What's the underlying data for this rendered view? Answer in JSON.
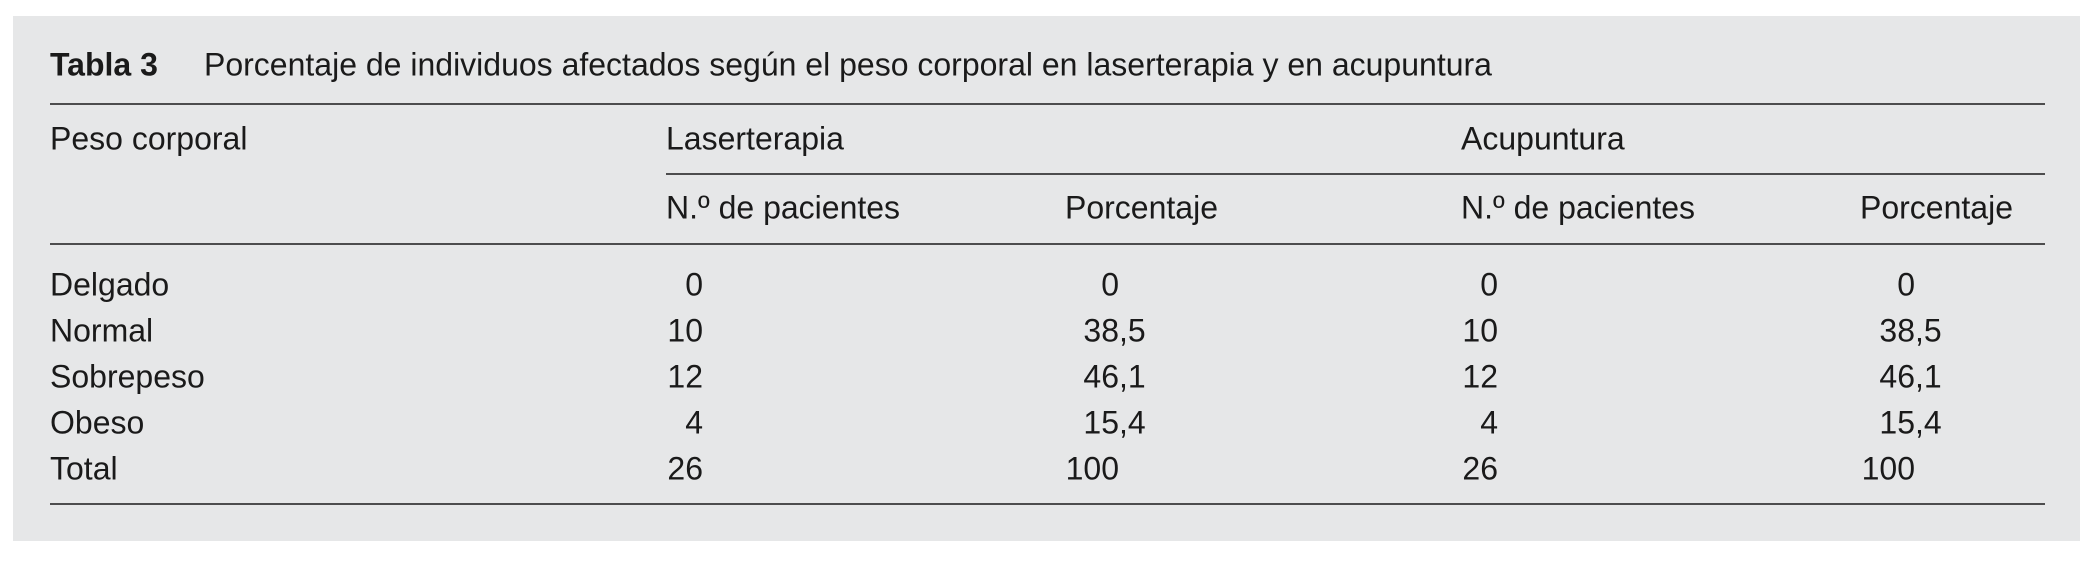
{
  "table": {
    "label": "Tabla 3",
    "title": "Porcentaje de individuos afectados según el peso corporal en laserterapia y en acupuntura",
    "header": {
      "row_label": "Peso corporal",
      "groups": [
        "Laserterapia",
        "Acupuntura"
      ],
      "subheaders": [
        "N.º de pacientes",
        "Porcentaje",
        "N.º de pacientes",
        "Porcentaje"
      ]
    },
    "rows": [
      [
        "Delgado",
        0,
        0,
        0,
        0
      ],
      [
        "Normal",
        10,
        "38,5",
        10,
        "38,5"
      ],
      [
        "Sobrepeso",
        12,
        "46,1",
        12,
        "46,1"
      ],
      [
        "Obeso",
        4,
        "15,4",
        4,
        "15,4"
      ],
      [
        "Total",
        26,
        100,
        26,
        100
      ]
    ]
  }
}
